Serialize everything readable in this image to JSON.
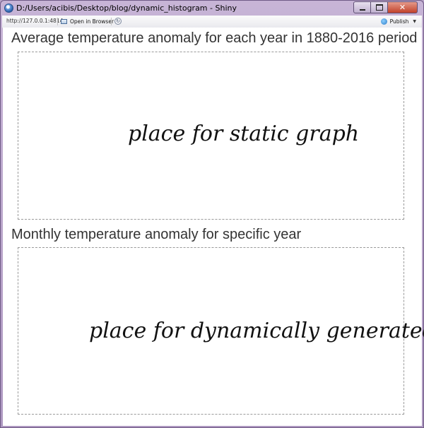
{
  "window": {
    "title": "D:/Users/acibis/Desktop/blog/dynamic_histogram - Shiny",
    "controls": {
      "close": "✕"
    }
  },
  "toolbar": {
    "url": "http://127.0.0.1:4814",
    "open_in_browser": "Open in Browser",
    "publish": "Publish"
  },
  "page": {
    "title1": "Average temperature anomaly for each year in 1880-2016 period",
    "placeholder1": "place for static graph",
    "title2": "Monthly temperature anomaly for specific year",
    "placeholder2": "place for dynamically generated"
  }
}
